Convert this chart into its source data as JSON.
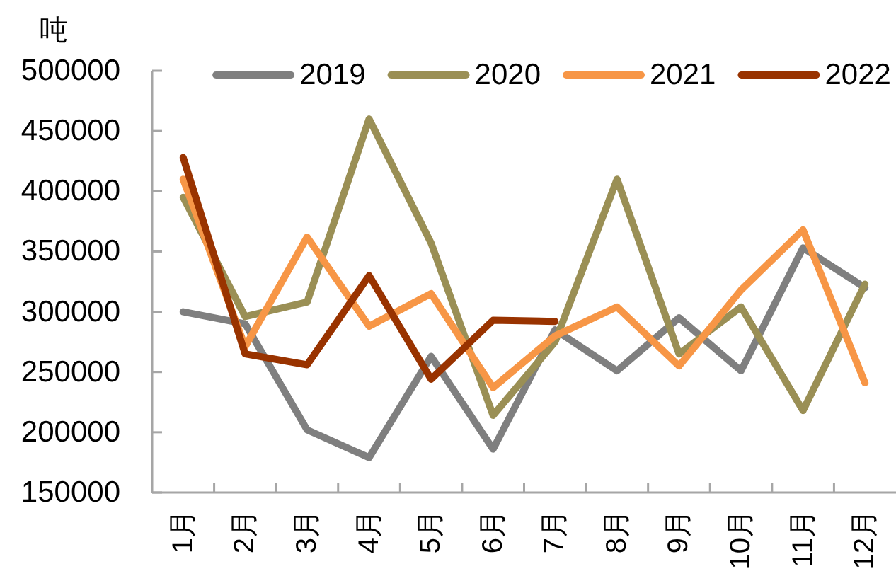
{
  "chart_data": {
    "type": "line",
    "ylabel": "吨",
    "categories": [
      "1月",
      "2月",
      "3月",
      "4月",
      "5月",
      "6月",
      "7月",
      "8月",
      "9月",
      "10月",
      "11月",
      "12月"
    ],
    "series": [
      {
        "name": "2019",
        "color": "#7f7f7f",
        "values": [
          300000,
          290000,
          202000,
          179000,
          263000,
          186000,
          285000,
          251000,
          295000,
          251000,
          353000,
          320000
        ]
      },
      {
        "name": "2020",
        "color": "#9a8f55",
        "values": [
          395000,
          296000,
          308000,
          460000,
          357000,
          214000,
          275000,
          410000,
          265000,
          304000,
          218000,
          323000
        ]
      },
      {
        "name": "2021",
        "color": "#f79646",
        "values": [
          410000,
          271000,
          362000,
          288000,
          315000,
          237000,
          280000,
          304000,
          255000,
          318000,
          368000,
          241000
        ]
      },
      {
        "name": "2022",
        "color": "#993300",
        "values": [
          428000,
          265000,
          256000,
          330000,
          244000,
          293000,
          292000,
          null,
          null,
          null,
          null,
          null
        ]
      }
    ],
    "ylim": [
      150000,
      500000
    ],
    "yticks": [
      150000,
      200000,
      250000,
      300000,
      350000,
      400000,
      450000,
      500000
    ],
    "legend": "top",
    "line_style": "solid"
  }
}
